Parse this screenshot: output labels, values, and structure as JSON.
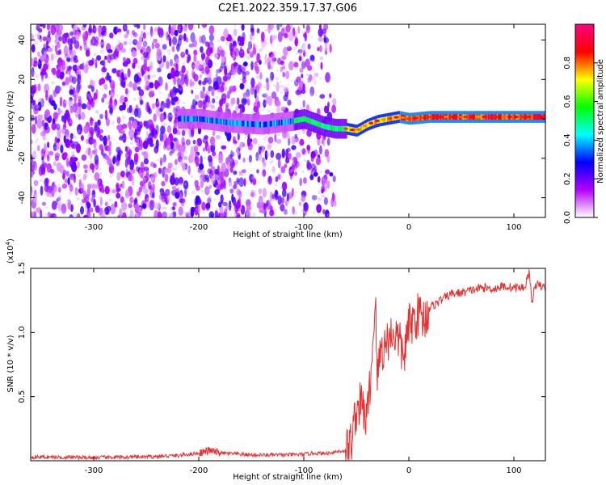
{
  "figure_title": "C2E1.2022.359.17.37.G06",
  "chart_data": [
    {
      "type": "heatmap",
      "title": "",
      "xlabel": "Height of straight line (km)",
      "ylabel": "Frequency (Hz)",
      "xlim": [
        -360,
        130
      ],
      "ylim": [
        -50,
        48
      ],
      "xticks": [
        -300,
        -200,
        -100,
        0,
        100
      ],
      "xtick_labels": [
        "-300",
        "-200",
        "-100",
        "0",
        "100"
      ],
      "yticks": [
        -40,
        -20,
        0,
        20,
        40
      ],
      "ytick_labels": [
        "-40",
        "-20",
        "0",
        "20",
        "40"
      ],
      "ridge": {
        "x": [
          -220,
          -200,
          -170,
          -140,
          -110,
          -100,
          -90,
          -80,
          -70,
          -60,
          -50,
          -40,
          -30,
          -20,
          -10,
          0,
          20,
          40,
          60,
          80,
          100,
          130
        ],
        "freq": [
          0,
          0,
          -2,
          -3,
          -1,
          0,
          -2,
          -4,
          -5,
          -5,
          -6,
          -3,
          -1,
          0,
          1,
          0,
          1,
          1,
          1,
          1,
          1,
          1
        ]
      },
      "colorbar": {
        "label": "Normalized spectral amplitude",
        "range": [
          0,
          1
        ],
        "ticks": [
          0.0,
          0.2,
          0.4,
          0.6,
          0.8
        ],
        "tick_labels": [
          "0.0",
          "0.2",
          "0.4",
          "0.6",
          "0.8"
        ],
        "colors": [
          "#ffffff",
          "#b400ff",
          "#0000ff",
          "#00ffff",
          "#00ff00",
          "#ffff00",
          "#ff0000",
          "#ff0080"
        ]
      }
    },
    {
      "type": "line",
      "title": "",
      "xlabel": "Height of straight line (km)",
      "ylabel": "SNR (10 * v/v)",
      "scale_label": "(x10",
      "scale_exp": "4",
      "scale_close": ")",
      "xlim": [
        -360,
        130
      ],
      "ylim": [
        0,
        15000
      ],
      "xticks": [
        -300,
        -200,
        -100,
        0,
        100
      ],
      "xtick_labels": [
        "-300",
        "-200",
        "-100",
        "0",
        "100"
      ],
      "yticks": [
        5000,
        10000,
        15000
      ],
      "ytick_labels": [
        "0.5",
        "1.0",
        "1.5"
      ],
      "series": [
        {
          "color": "#e83030",
          "x": [
            -360,
            -300,
            -250,
            -220,
            -200,
            -190,
            -180,
            -150,
            -120,
            -100,
            -90,
            -80,
            -70,
            -60,
            -55,
            -50,
            -45,
            -40,
            -35,
            -32,
            -30,
            -27,
            -25,
            -20,
            -15,
            -10,
            -5,
            0,
            5,
            10,
            15,
            20,
            25,
            30,
            40,
            50,
            60,
            70,
            80,
            90,
            100,
            110,
            115,
            117,
            120,
            125,
            130
          ],
          "y": [
            300,
            250,
            300,
            400,
            600,
            800,
            600,
            450,
            450,
            500,
            600,
            550,
            700,
            800,
            1500,
            4000,
            4500,
            3000,
            8000,
            13000,
            6000,
            9000,
            8500,
            9500,
            10000,
            9500,
            8000,
            10500,
            11000,
            11500,
            11000,
            12000,
            12200,
            12500,
            13000,
            13100,
            13300,
            13500,
            13400,
            13600,
            13500,
            13500,
            14800,
            12000,
            13800,
            13600,
            13500
          ]
        }
      ]
    }
  ]
}
